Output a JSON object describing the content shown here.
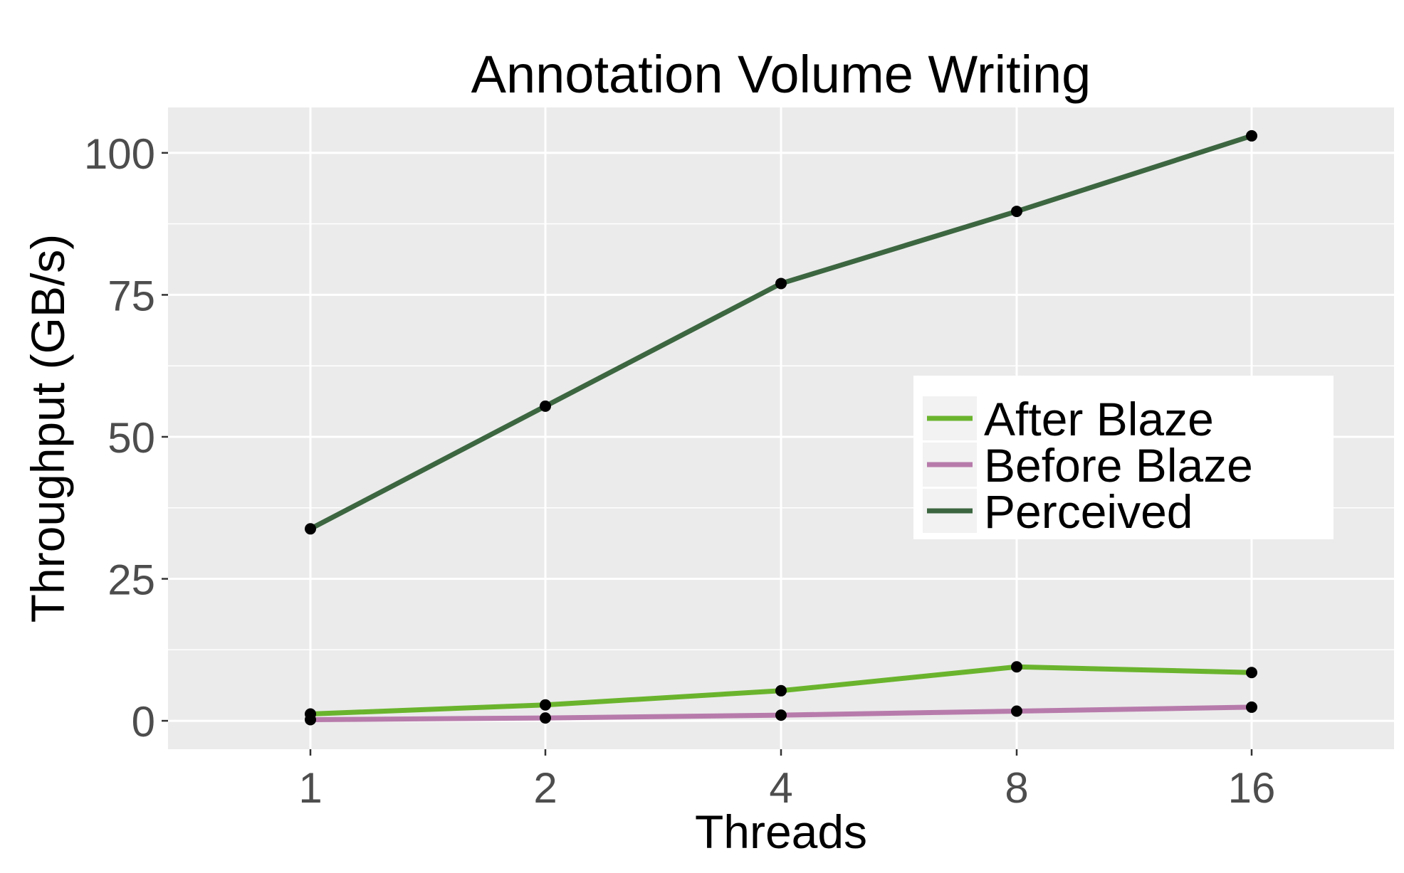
{
  "chart_data": {
    "type": "line",
    "title": "Annotation Volume Writing",
    "xlabel": "Threads",
    "ylabel": "Throughput (GB/s)",
    "categories": [
      "1",
      "2",
      "4",
      "8",
      "16"
    ],
    "x_scale": "log2 (evenly spaced categories)",
    "ylim": [
      -5,
      108
    ],
    "yticks": [
      0,
      25,
      50,
      75,
      100
    ],
    "grid": true,
    "legend_position": "right",
    "series": [
      {
        "name": "After Blaze",
        "color": "#6ab42d",
        "values": [
          1.2,
          2.8,
          5.3,
          9.5,
          8.5
        ]
      },
      {
        "name": "Before Blaze",
        "color": "#b77bab",
        "values": [
          0.2,
          0.5,
          1.0,
          1.7,
          2.4
        ]
      },
      {
        "name": "Perceived",
        "color": "#3c6640",
        "values": [
          33.8,
          55.4,
          77.0,
          89.7,
          103.0
        ]
      }
    ],
    "marker_color": "#000000",
    "panel_background": "#ebebeb",
    "gridline_color": "#ffffff"
  }
}
